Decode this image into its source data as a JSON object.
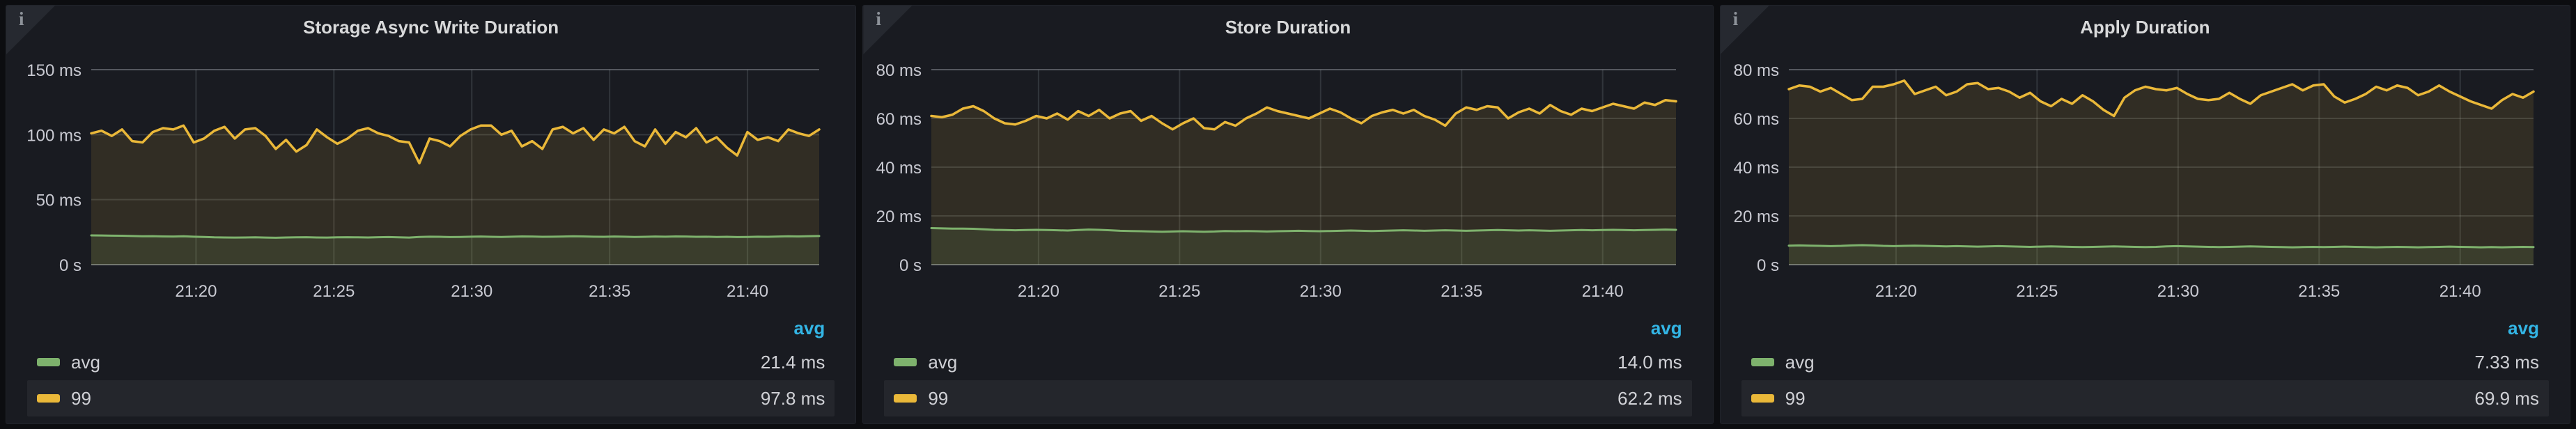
{
  "icons": {
    "info_glyph": "i"
  },
  "colors": {
    "page_bg": "#0c0d10",
    "panel_bg": "#191b21",
    "title_text": "#d8d9da",
    "axis_text": "#c9cad2",
    "legend_sort_blue": "#33b5e5",
    "series_green": "#7eb26d",
    "series_yellow": "#eab839",
    "grid_inner": "rgba(201,209,217,0.16)",
    "grid_vertical": "rgba(201,209,217,0.14)",
    "grid_boundary": "rgba(201,209,217,0.34)",
    "grid_baseline": "rgba(201,209,217,0.46)"
  },
  "time_axis": {
    "x0_min": 16.2,
    "x1_min": 42.6,
    "ticks": [
      {
        "min": 20,
        "label": "21:20"
      },
      {
        "min": 25,
        "label": "21:25"
      },
      {
        "min": 30,
        "label": "21:30"
      },
      {
        "min": 35,
        "label": "21:35"
      },
      {
        "min": 40,
        "label": "21:40"
      }
    ]
  },
  "panels": [
    {
      "title": "Storage Async Write Duration",
      "legend": {
        "header": "avg",
        "rows": [
          {
            "name": "avg",
            "value": "21.4 ms",
            "color": "#7eb26d"
          },
          {
            "name": "99",
            "value": "97.8 ms",
            "color": "#eab839"
          }
        ]
      },
      "chart_data": {
        "type": "line",
        "title": "Storage Async Write Duration",
        "y_unit": "ms",
        "y_max": 150,
        "y_axis_width": 122,
        "grid": true,
        "legend_position": "bottom",
        "x_ticks": [
          "21:20",
          "21:25",
          "21:30",
          "21:35",
          "21:40"
        ],
        "y_ticks": [
          {
            "v": 0,
            "label": "0 s"
          },
          {
            "v": 50,
            "label": "50 ms"
          },
          {
            "v": 100,
            "label": "100 ms"
          },
          {
            "v": 150,
            "label": "150 ms"
          }
        ],
        "series": [
          {
            "name": "avg",
            "color": "#7eb26d",
            "width": 3,
            "values": [
              22.5,
              22.4,
              22.3,
              22.2,
              22.0,
              21.8,
              21.9,
              21.7,
              21.6,
              21.8,
              21.5,
              21.3,
              21.0,
              20.9,
              20.8,
              20.9,
              21.0,
              20.8,
              20.7,
              20.9,
              21.0,
              21.1,
              20.9,
              20.8,
              21.0,
              21.1,
              21.0,
              20.9,
              21.1,
              21.2,
              21.0,
              20.8,
              21.3,
              21.5,
              21.4,
              21.2,
              21.3,
              21.5,
              21.6,
              21.4,
              21.3,
              21.5,
              21.7,
              21.6,
              21.4,
              21.5,
              21.6,
              21.8,
              21.7,
              21.5,
              21.4,
              21.6,
              21.5,
              21.3,
              21.4,
              21.6,
              21.5,
              21.7,
              21.6,
              21.4,
              21.5,
              21.3,
              21.4,
              21.2,
              21.3,
              21.5,
              21.4,
              21.6,
              21.8,
              21.7,
              21.9,
              22.0
            ]
          },
          {
            "name": "99",
            "color": "#eab839",
            "width": 3.5,
            "values": [
              101,
              103,
              99,
              104,
              95,
              94,
              102,
              105,
              104,
              107,
              94,
              97,
              103,
              106,
              97,
              104,
              105,
              99,
              89,
              96,
              87,
              92,
              104,
              98,
              93,
              97,
              103,
              105,
              101,
              99,
              95,
              94,
              78,
              97,
              95,
              91,
              99,
              104,
              107,
              107,
              100,
              103,
              91,
              95,
              89,
              104,
              106,
              101,
              105,
              96,
              104,
              101,
              106,
              95,
              91,
              104,
              93,
              102,
              98,
              105,
              94,
              98,
              90,
              84,
              102,
              96,
              98,
              95,
              104,
              101,
              99,
              104
            ]
          }
        ]
      }
    },
    {
      "title": "Store Duration",
      "legend": {
        "header": "avg",
        "rows": [
          {
            "name": "avg",
            "value": "14.0 ms",
            "color": "#7eb26d"
          },
          {
            "name": "99",
            "value": "62.2 ms",
            "color": "#eab839"
          }
        ]
      },
      "chart_data": {
        "type": "line",
        "title": "Store Duration",
        "y_unit": "ms",
        "y_max": 80,
        "y_axis_width": 98,
        "grid": true,
        "legend_position": "bottom",
        "x_ticks": [
          "21:20",
          "21:25",
          "21:30",
          "21:35",
          "21:40"
        ],
        "y_ticks": [
          {
            "v": 0,
            "label": "0 s"
          },
          {
            "v": 20,
            "label": "20 ms"
          },
          {
            "v": 40,
            "label": "40 ms"
          },
          {
            "v": 60,
            "label": "60 ms"
          },
          {
            "v": 80,
            "label": "80 ms"
          }
        ],
        "series": [
          {
            "name": "avg",
            "color": "#7eb26d",
            "width": 3,
            "values": [
              15.0,
              14.9,
              14.8,
              14.8,
              14.7,
              14.5,
              14.3,
              14.2,
              14.1,
              14.2,
              14.3,
              14.2,
              14.1,
              14.0,
              14.2,
              14.4,
              14.3,
              14.1,
              13.9,
              13.8,
              13.7,
              13.6,
              13.5,
              13.6,
              13.7,
              13.6,
              13.5,
              13.6,
              13.8,
              13.7,
              13.8,
              13.7,
              13.6,
              13.7,
              13.8,
              13.9,
              13.8,
              13.7,
              13.8,
              13.9,
              14.0,
              13.9,
              13.8,
              13.9,
              14.0,
              14.1,
              14.0,
              13.9,
              14.0,
              14.1,
              14.0,
              13.9,
              14.0,
              14.1,
              14.2,
              14.1,
              14.0,
              14.1,
              14.0,
              13.9,
              14.0,
              14.1,
              14.2,
              14.1,
              14.2,
              14.3,
              14.2,
              14.1,
              14.2,
              14.3,
              14.4,
              14.3
            ]
          },
          {
            "name": "99",
            "color": "#eab839",
            "width": 3.5,
            "values": [
              61,
              60.5,
              61.5,
              64,
              65,
              63,
              60,
              58,
              57.5,
              59,
              61,
              60,
              62,
              59.5,
              63,
              61,
              63.5,
              60,
              62,
              63,
              59,
              61,
              58,
              55.5,
              58,
              60,
              56,
              55.5,
              58.5,
              57,
              60,
              62,
              64.5,
              63,
              62,
              61,
              60,
              62,
              64,
              62.5,
              60,
              58,
              61,
              62.5,
              63.5,
              62,
              63.5,
              61,
              59.5,
              57,
              62,
              64.5,
              63.5,
              65,
              64.5,
              60,
              62.5,
              64,
              62,
              65.5,
              63,
              61.5,
              64,
              63,
              64.5,
              66,
              65,
              64,
              66.5,
              65.5,
              67.5,
              67
            ]
          }
        ]
      }
    },
    {
      "title": "Apply Duration",
      "legend": {
        "header": "avg",
        "rows": [
          {
            "name": "avg",
            "value": "7.33 ms",
            "color": "#7eb26d"
          },
          {
            "name": "99",
            "value": "69.9 ms",
            "color": "#eab839"
          }
        ]
      },
      "chart_data": {
        "type": "line",
        "title": "Apply Duration",
        "y_unit": "ms",
        "y_max": 80,
        "y_axis_width": 98,
        "grid": true,
        "legend_position": "bottom",
        "x_ticks": [
          "21:20",
          "21:25",
          "21:30",
          "21:35",
          "21:40"
        ],
        "y_ticks": [
          {
            "v": 0,
            "label": "0 s"
          },
          {
            "v": 20,
            "label": "20 ms"
          },
          {
            "v": 40,
            "label": "40 ms"
          },
          {
            "v": 60,
            "label": "60 ms"
          },
          {
            "v": 80,
            "label": "80 ms"
          }
        ],
        "series": [
          {
            "name": "avg",
            "color": "#7eb26d",
            "width": 3,
            "values": [
              7.8,
              7.9,
              7.8,
              7.7,
              7.6,
              7.7,
              7.9,
              8.0,
              7.9,
              7.7,
              7.6,
              7.7,
              7.8,
              7.7,
              7.6,
              7.5,
              7.6,
              7.5,
              7.4,
              7.5,
              7.6,
              7.5,
              7.4,
              7.3,
              7.4,
              7.5,
              7.4,
              7.3,
              7.2,
              7.3,
              7.4,
              7.5,
              7.4,
              7.3,
              7.2,
              7.3,
              7.5,
              7.6,
              7.5,
              7.4,
              7.3,
              7.2,
              7.3,
              7.4,
              7.5,
              7.4,
              7.3,
              7.2,
              7.1,
              7.2,
              7.3,
              7.2,
              7.3,
              7.4,
              7.3,
              7.2,
              7.1,
              7.2,
              7.3,
              7.2,
              7.1,
              7.2,
              7.3,
              7.4,
              7.3,
              7.2,
              7.1,
              7.2,
              7.1,
              7.2,
              7.3,
              7.2
            ]
          },
          {
            "name": "99",
            "color": "#eab839",
            "width": 3.5,
            "values": [
              72,
              73.5,
              73,
              71,
              72.5,
              70,
              67.5,
              68,
              73,
              73,
              74,
              75.5,
              70,
              71.5,
              73,
              69.5,
              71,
              74,
              74.5,
              72,
              72.5,
              71,
              68.5,
              70.5,
              67,
              65,
              68,
              66,
              69.5,
              67,
              63.5,
              61,
              68.5,
              71.5,
              73,
              72,
              71.5,
              72.5,
              70,
              68,
              67.5,
              68,
              70.5,
              68,
              66,
              69.5,
              71,
              72.5,
              74,
              71.5,
              73.5,
              74,
              69,
              66.5,
              68,
              70,
              73,
              71.5,
              73.5,
              72.5,
              69.5,
              71,
              73.5,
              71,
              69,
              67,
              65.5,
              64,
              67.5,
              70,
              68.5,
              71
            ]
          }
        ]
      }
    }
  ]
}
